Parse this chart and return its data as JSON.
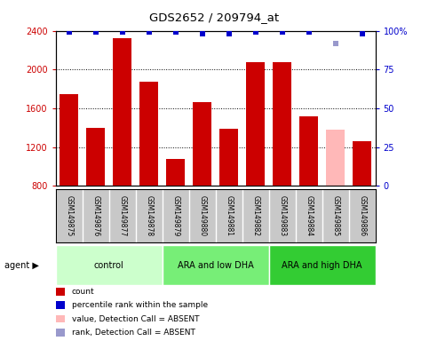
{
  "title": "GDS2652 / 209794_at",
  "samples": [
    "GSM149875",
    "GSM149876",
    "GSM149877",
    "GSM149878",
    "GSM149879",
    "GSM149880",
    "GSM149881",
    "GSM149882",
    "GSM149883",
    "GSM149884",
    "GSM149885",
    "GSM149886"
  ],
  "bar_values": [
    1750,
    1400,
    2320,
    1870,
    1080,
    1660,
    1390,
    2080,
    2080,
    1520,
    1380,
    1260
  ],
  "bar_colors": [
    "#cc0000",
    "#cc0000",
    "#cc0000",
    "#cc0000",
    "#cc0000",
    "#cc0000",
    "#cc0000",
    "#cc0000",
    "#cc0000",
    "#cc0000",
    "#ffb8b8",
    "#cc0000"
  ],
  "dot_values": [
    99,
    99,
    99,
    99,
    99,
    98,
    98,
    99,
    99,
    99,
    92,
    98
  ],
  "dot_color": "#0000cc",
  "dot_absent_color": "#9999cc",
  "absent_indices": [
    10
  ],
  "ylim": [
    800,
    2400
  ],
  "y_ticks": [
    800,
    1200,
    1600,
    2000,
    2400
  ],
  "y2_ticks": [
    0,
    25,
    50,
    75,
    100
  ],
  "groups": [
    {
      "label": "control",
      "start": 0,
      "end": 3,
      "color": "#ccffcc"
    },
    {
      "label": "ARA and low DHA",
      "start": 4,
      "end": 7,
      "color": "#77ee77"
    },
    {
      "label": "ARA and high DHA",
      "start": 8,
      "end": 11,
      "color": "#33cc33"
    }
  ],
  "legend_items": [
    {
      "label": "count",
      "color": "#cc0000"
    },
    {
      "label": "percentile rank within the sample",
      "color": "#0000cc"
    },
    {
      "label": "value, Detection Call = ABSENT",
      "color": "#ffb8b8"
    },
    {
      "label": "rank, Detection Call = ABSENT",
      "color": "#9999cc"
    }
  ],
  "background_color": "#ffffff",
  "label_bg": "#c8c8c8",
  "label_border": "#ffffff",
  "bar_width": 0.7
}
